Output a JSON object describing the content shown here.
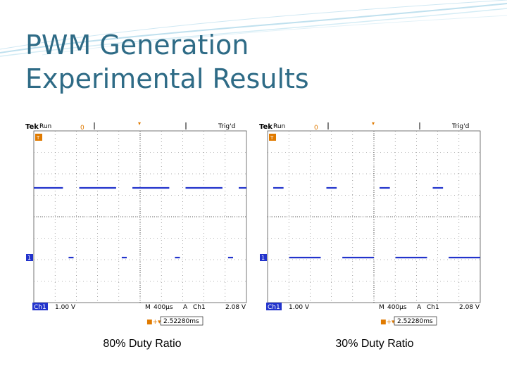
{
  "slide": {
    "title_line1": "PWM Generation",
    "title_line2": "Experimental Results"
  },
  "scopes": [
    {
      "id": "left",
      "brand": "Tek",
      "state": "Run",
      "trigger_status": "Trig'd",
      "ch1_scale": "1.00 V",
      "timebase": "400µs",
      "trigger_source": "Ch1",
      "trigger_level": "2.08 V",
      "horizontal_position": "2.52280ms",
      "ch1_label": "Ch1",
      "ch1_marker": "1",
      "trigger_marker": "T",
      "duty_percent": 80,
      "caption": "80% Duty Ratio"
    },
    {
      "id": "right",
      "brand": "Tek",
      "state": "Run",
      "trigger_status": "Trig'd",
      "ch1_scale": "1.00 V",
      "timebase": "400µs",
      "trigger_source": "Ch1",
      "trigger_level": "2.08 V",
      "horizontal_position": "2.52280ms",
      "ch1_label": "Ch1",
      "ch1_marker": "1",
      "trigger_marker": "T",
      "duty_percent": 30,
      "caption": "30% Duty Ratio"
    }
  ],
  "colors": {
    "title": "#2e6b86",
    "trace": "#2233cc",
    "marker": "#e07a00",
    "grid": "#555555"
  }
}
